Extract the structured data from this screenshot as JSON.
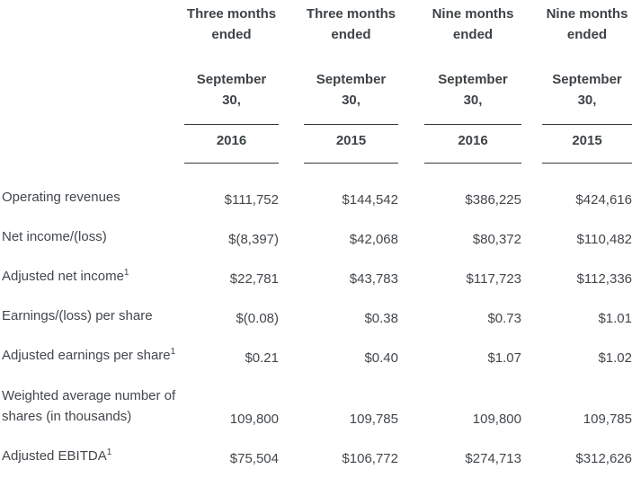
{
  "table": {
    "columns": [
      {
        "period_line1": "Three months",
        "period_line2": "ended",
        "date_line1": "September",
        "date_line2": "30,",
        "year": "2016"
      },
      {
        "period_line1": "Three months",
        "period_line2": "ended",
        "date_line1": "September",
        "date_line2": "30,",
        "year": "2015"
      },
      {
        "period_line1": "Nine months",
        "period_line2": "ended",
        "date_line1": "September",
        "date_line2": "30,",
        "year": "2016"
      },
      {
        "period_line1": "Nine months",
        "period_line2": "ended",
        "date_line1": "September",
        "date_line2": "30,",
        "year": "2015"
      }
    ],
    "rows": [
      {
        "label": "Operating revenues",
        "sup": "",
        "label_line2": "",
        "values": [
          "$111,752",
          "$144,542",
          "$386,225",
          "$424,616"
        ]
      },
      {
        "label": "Net income/(loss)",
        "sup": "",
        "label_line2": "",
        "values": [
          "$(8,397)",
          "$42,068",
          "$80,372",
          "$110,482"
        ]
      },
      {
        "label": "Adjusted net income",
        "sup": "1",
        "label_line2": "",
        "values": [
          "$22,781",
          "$43,783",
          "$117,723",
          "$112,336"
        ]
      },
      {
        "label": "Earnings/(loss) per share",
        "sup": "",
        "label_line2": "",
        "values": [
          "$(0.08)",
          "$0.38",
          "$0.73",
          "$1.01"
        ]
      },
      {
        "label": "Adjusted earnings per share",
        "sup": "1",
        "label_line2": "",
        "values": [
          "$0.21",
          "$0.40",
          "$1.07",
          "$1.02"
        ]
      },
      {
        "label": "Weighted average number of",
        "sup": "",
        "label_line2": "shares (in thousands)",
        "values": [
          "109,800",
          "109,785",
          "109,800",
          "109,785"
        ]
      },
      {
        "label": "Adjusted EBITDA",
        "sup": "1",
        "label_line2": "",
        "values": [
          "$75,504",
          "$106,772",
          "$274,713",
          "$312,626"
        ]
      }
    ],
    "colors": {
      "text": "#42474c",
      "heading": "#3e4347",
      "rule": "#35393d"
    }
  }
}
